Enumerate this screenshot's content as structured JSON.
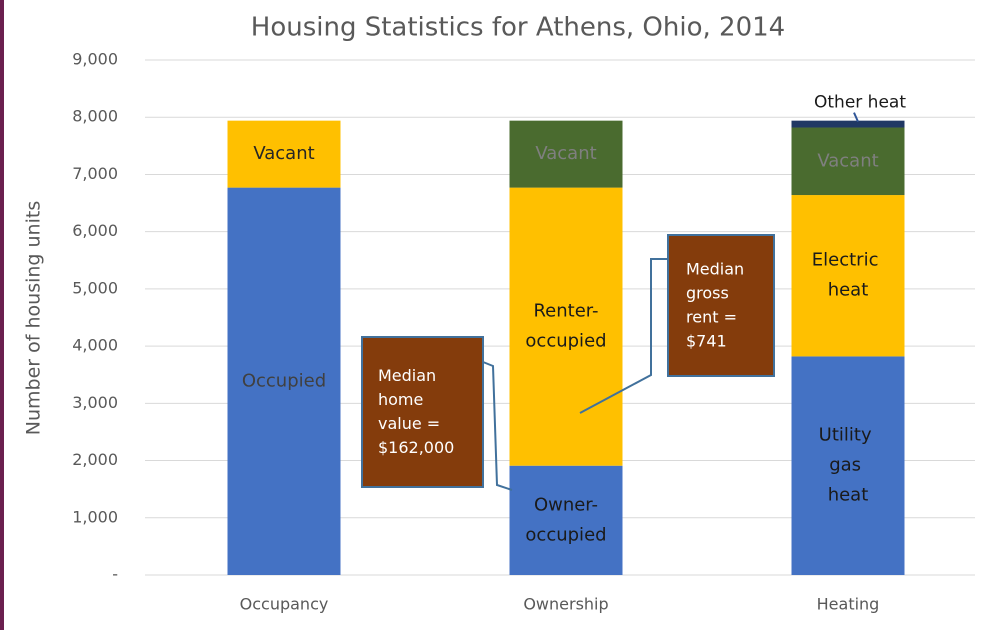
{
  "chart_data": {
    "type": "stacked-bar",
    "title": "Housing Statistics for Athens, Ohio, 2014",
    "y_label": "Number of housing units",
    "ylim": [
      0,
      9000
    ],
    "yticks": [
      {
        "value": 0,
        "label": "-"
      },
      {
        "value": 1000,
        "label": "1,000"
      },
      {
        "value": 2000,
        "label": "2,000"
      },
      {
        "value": 3000,
        "label": "3,000"
      },
      {
        "value": 4000,
        "label": "4,000"
      },
      {
        "value": 5000,
        "label": "5,000"
      },
      {
        "value": 6000,
        "label": "6,000"
      },
      {
        "value": 7000,
        "label": "7,000"
      },
      {
        "value": 8000,
        "label": "8,000"
      },
      {
        "value": 9000,
        "label": "9,000"
      }
    ],
    "grid": true,
    "bars": [
      {
        "category": "Occupancy",
        "segments": [
          {
            "label": "Occupied",
            "value": 6770,
            "color": "#4472c4",
            "label_color": "#404040"
          },
          {
            "label": "Vacant",
            "value": 1170,
            "color": "#ffc000",
            "label_color": "#262626"
          }
        ]
      },
      {
        "category": "Ownership",
        "segments": [
          {
            "label": "Owner-occupied",
            "value": 1910,
            "color": "#4472c4",
            "label_color": "#1a1a1a"
          },
          {
            "label": "Renter-occupied",
            "value": 4860,
            "color": "#ffc000",
            "label_color": "#1a1a1a"
          },
          {
            "label": "Vacant",
            "value": 1170,
            "color": "#4a6b2f",
            "label_color": "#7f7f7f"
          }
        ]
      },
      {
        "category": "Heating",
        "segments": [
          {
            "label": "Utility gas heat",
            "value": 3820,
            "color": "#4472c4",
            "label_color": "#1a1a1a"
          },
          {
            "label": "Electric heat",
            "value": 2820,
            "color": "#ffc000",
            "label_color": "#1a1a1a"
          },
          {
            "label": "Vacant",
            "value": 1180,
            "color": "#4a6b2f",
            "label_color": "#7f7f7f"
          },
          {
            "label": "Other heat",
            "value": 120,
            "color": "#203864",
            "label_color": "#1a1a1a"
          }
        ]
      }
    ],
    "annotations": [
      {
        "text": "Median home value = $162,000",
        "color": "#843c0c"
      },
      {
        "text": "Median gross rent = $741",
        "color": "#843c0c"
      }
    ]
  }
}
